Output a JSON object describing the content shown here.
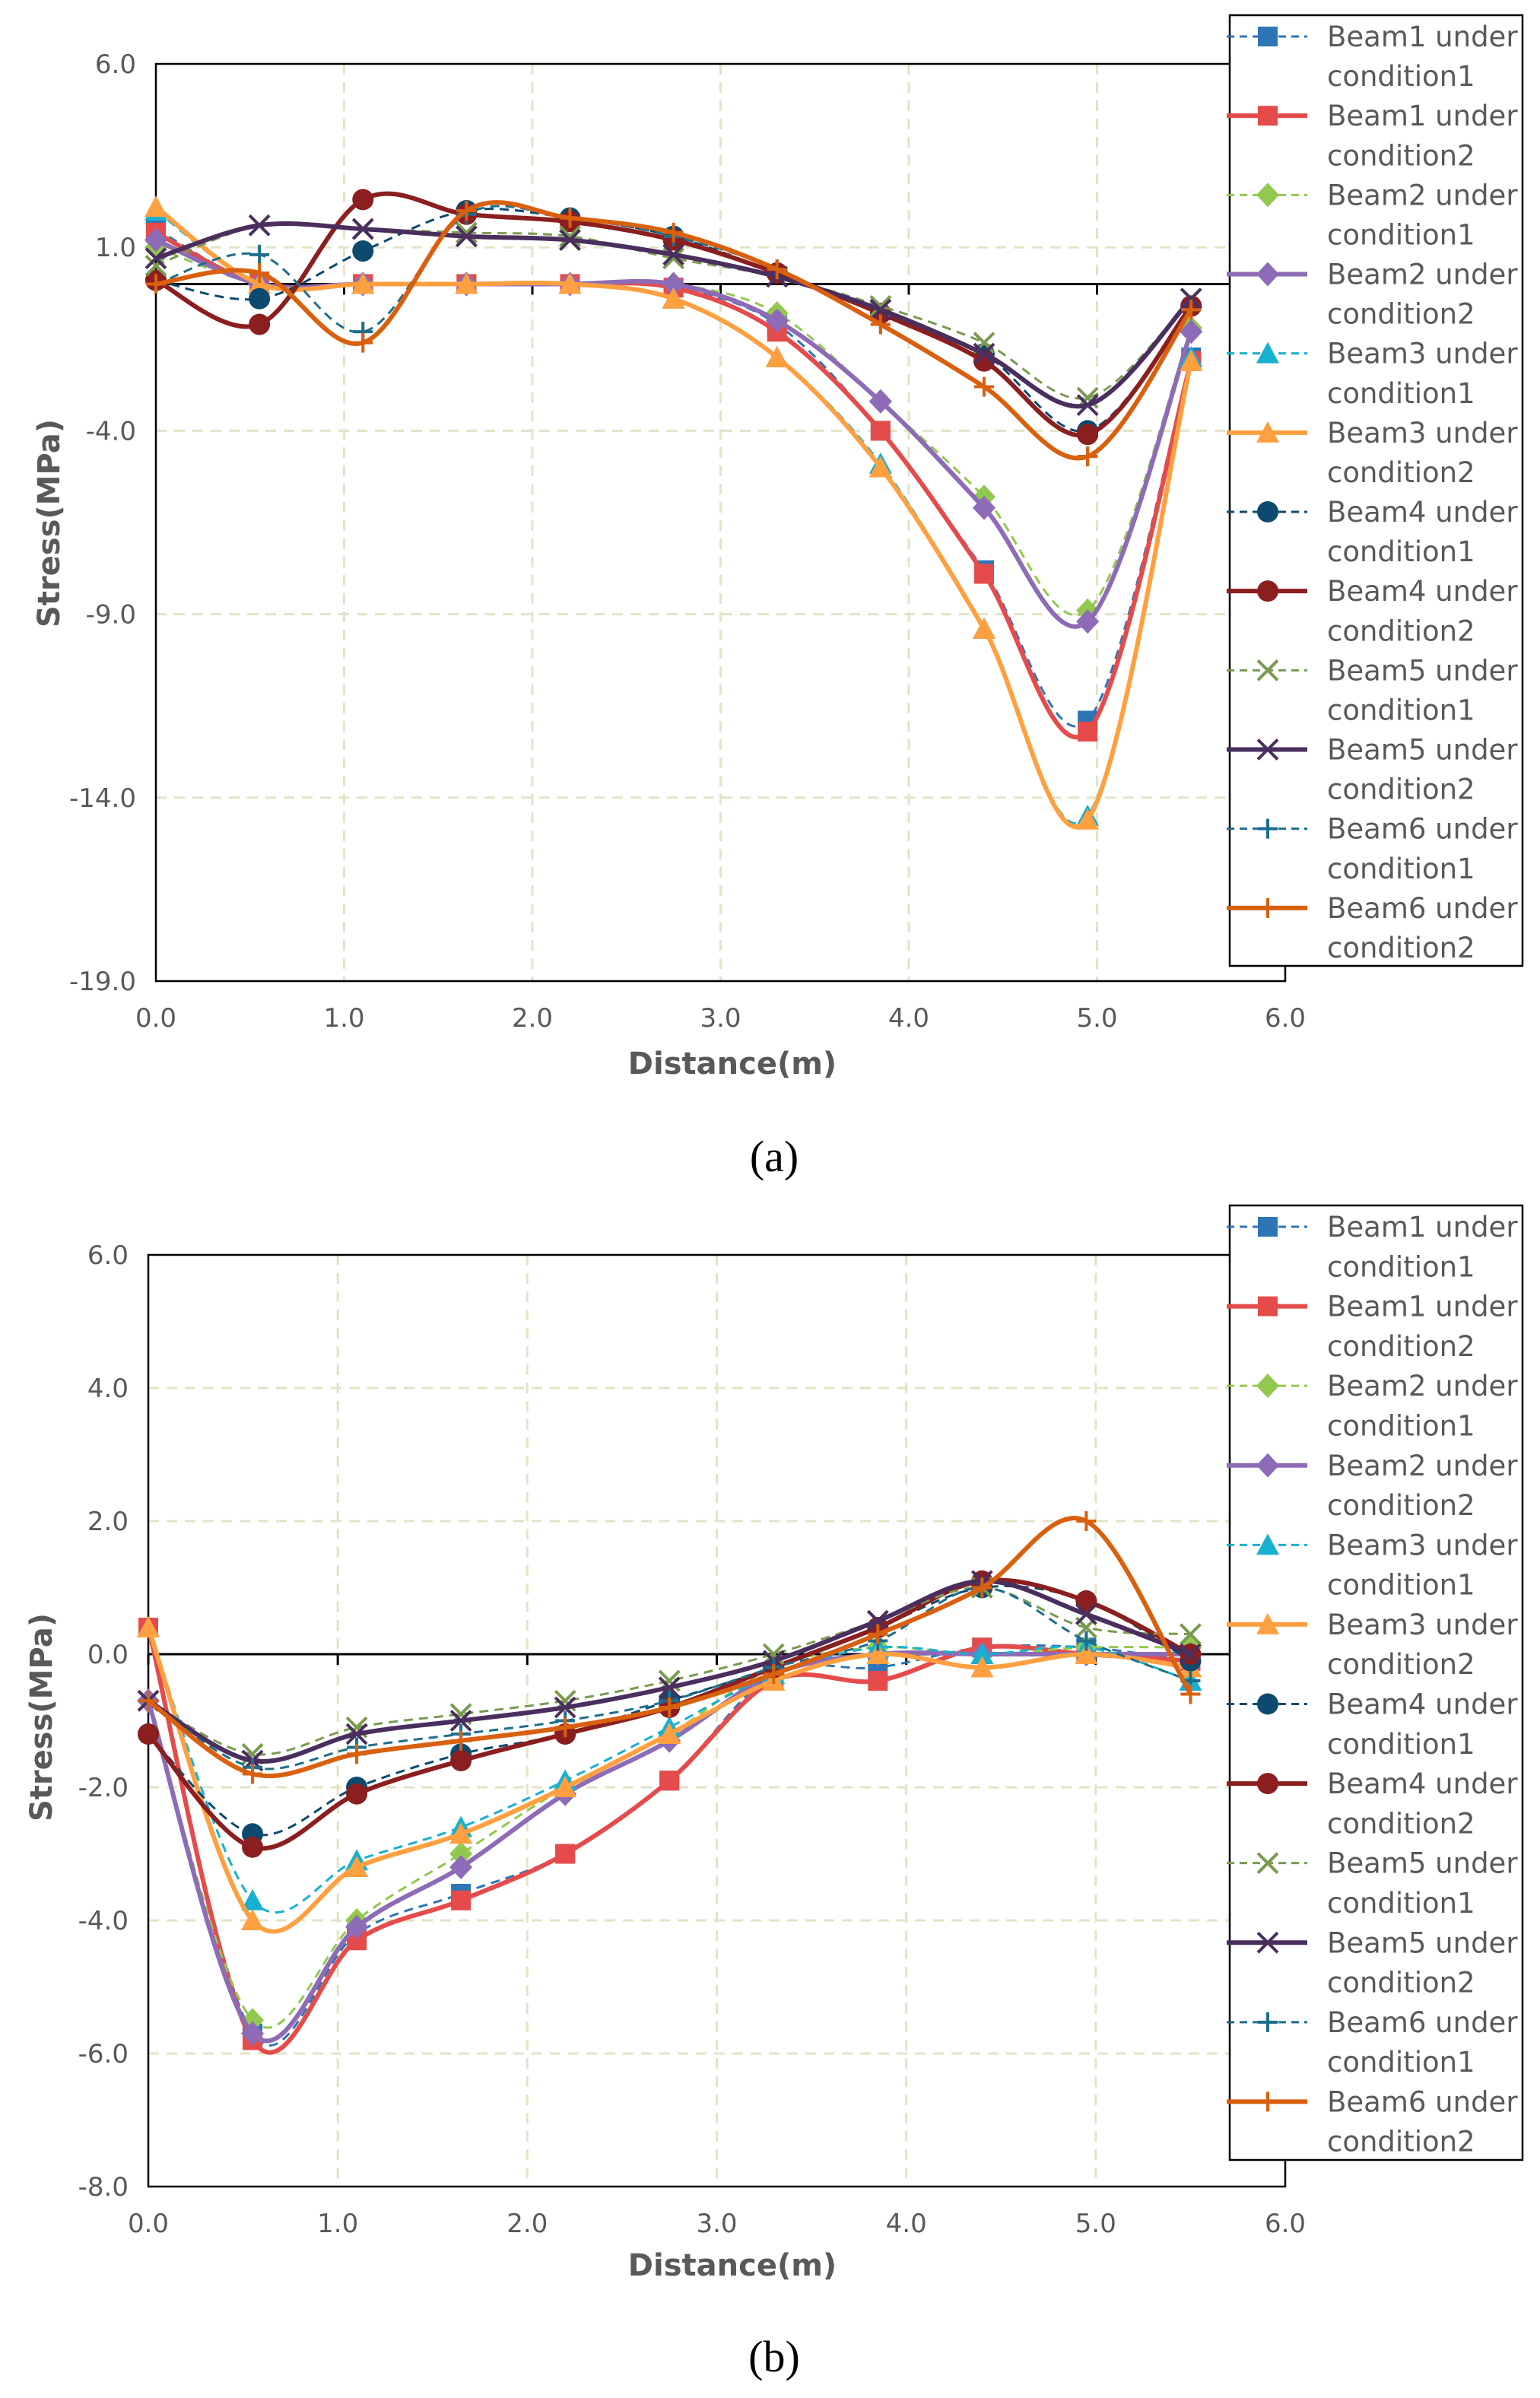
{
  "colors": {
    "b1c1": "#2E75B6",
    "b1c2": "#E54B4B",
    "b2c1": "#92C84E",
    "b2c2": "#8E6BB7",
    "b3c1": "#17B0D0",
    "b3c2": "#FFA040",
    "b4c1": "#0C4A6E",
    "b4c2": "#8B1E1E",
    "b5c1": "#7A9A50",
    "b5c2": "#4A2E5E",
    "b6c1": "#1D6E8C",
    "b6c2": "#D9600F",
    "grid": "#e3e3c7",
    "axis": "#000000"
  },
  "legend": [
    {
      "line1": "Beam1 under",
      "line2": "condition1",
      "marker": "square",
      "dashed": true,
      "color_key": "b1c1"
    },
    {
      "line1": "Beam1 under",
      "line2": "condition2",
      "marker": "square",
      "dashed": false,
      "color_key": "b1c2"
    },
    {
      "line1": "Beam2 under",
      "line2": "condition1",
      "marker": "diamond",
      "dashed": true,
      "color_key": "b2c1"
    },
    {
      "line1": "Beam2 under",
      "line2": "condition2",
      "marker": "diamond",
      "dashed": false,
      "color_key": "b2c2"
    },
    {
      "line1": "Beam3 under",
      "line2": "condition1",
      "marker": "triangle",
      "dashed": true,
      "color_key": "b3c1"
    },
    {
      "line1": "Beam3 under",
      "line2": "condition2",
      "marker": "triangle",
      "dashed": false,
      "color_key": "b3c2"
    },
    {
      "line1": "Beam4 under",
      "line2": "condition1",
      "marker": "circle",
      "dashed": true,
      "color_key": "b4c1"
    },
    {
      "line1": "Beam4 under",
      "line2": "condition2",
      "marker": "circle",
      "dashed": false,
      "color_key": "b4c2"
    },
    {
      "line1": "Beam5 under",
      "line2": "condition1",
      "marker": "x",
      "dashed": true,
      "color_key": "b5c1"
    },
    {
      "line1": "Beam5 under",
      "line2": "condition2",
      "marker": "x",
      "dashed": false,
      "color_key": "b5c2"
    },
    {
      "line1": "Beam6 under",
      "line2": "condition1",
      "marker": "plus",
      "dashed": true,
      "color_key": "b6c1"
    },
    {
      "line1": "Beam6 under",
      "line2": "condition2",
      "marker": "plus",
      "dashed": false,
      "color_key": "b6c2"
    }
  ],
  "chart_data": [
    {
      "type": "line",
      "caption": "(a)",
      "xlabel": "Distance(m)",
      "ylabel": "Stress(MPa)",
      "xlim": [
        0,
        6
      ],
      "ylim": [
        -19,
        6
      ],
      "xticks": [
        0,
        1,
        2,
        3,
        4,
        5,
        6
      ],
      "xtick_labels": [
        "0.0",
        "1.0",
        "2.0",
        "3.0",
        "4.0",
        "5.0",
        "6.0"
      ],
      "yticks": [
        6,
        1,
        -4,
        -9,
        -14,
        -19
      ],
      "ytick_labels": [
        "6.0",
        "1.0",
        "-4.0",
        "-9.0",
        "-14.0",
        "-19.0"
      ],
      "grid": true,
      "legend_position": "right",
      "x": [
        0,
        0.55,
        1.1,
        1.65,
        2.2,
        2.75,
        3.3,
        3.85,
        4.4,
        4.95,
        5.5
      ],
      "series": [
        {
          "name": "Beam1 under condition1",
          "values": [
            1.5,
            0,
            0,
            0,
            0,
            -0.1,
            -1.1,
            -4.0,
            -7.8,
            -11.9,
            -2.0
          ]
        },
        {
          "name": "Beam1 under condition2",
          "values": [
            1.4,
            0,
            0,
            0,
            0,
            -0.1,
            -1.3,
            -4.0,
            -7.9,
            -12.2,
            -2.1
          ]
        },
        {
          "name": "Beam2 under condition1",
          "values": [
            1.0,
            0,
            0,
            0,
            0,
            0,
            -0.8,
            -3.2,
            -5.8,
            -8.9,
            -1.2
          ]
        },
        {
          "name": "Beam2 under condition2",
          "values": [
            1.2,
            0,
            0,
            0,
            0,
            0,
            -1.0,
            -3.2,
            -6.1,
            -9.2,
            -1.3
          ]
        },
        {
          "name": "Beam3 under condition1",
          "values": [
            2.0,
            0,
            0,
            0,
            0,
            -0.4,
            -2.0,
            -4.9,
            -9.4,
            -14.5,
            -2.0
          ]
        },
        {
          "name": "Beam3 under condition2",
          "values": [
            2.1,
            0,
            0,
            0,
            0,
            -0.4,
            -2.0,
            -5.0,
            -9.4,
            -14.6,
            -2.1
          ]
        },
        {
          "name": "Beam4 under condition1",
          "values": [
            0.1,
            -0.4,
            0.9,
            2.0,
            1.8,
            1.3,
            0.3,
            -0.8,
            -1.9,
            -4.0,
            -0.6
          ]
        },
        {
          "name": "Beam4 under condition2",
          "values": [
            0.1,
            -1.1,
            2.3,
            1.9,
            1.7,
            1.2,
            0.3,
            -0.8,
            -2.1,
            -4.1,
            -0.6
          ]
        },
        {
          "name": "Beam5 under condition1",
          "values": [
            0.5,
            1.6,
            1.5,
            1.4,
            1.3,
            0.7,
            0.2,
            -0.6,
            -1.6,
            -3.1,
            -0.4
          ]
        },
        {
          "name": "Beam5 under condition2",
          "values": [
            0.7,
            1.6,
            1.5,
            1.3,
            1.2,
            0.8,
            0.2,
            -0.7,
            -1.9,
            -3.3,
            -0.4
          ]
        },
        {
          "name": "Beam6 under condition1",
          "values": [
            0.0,
            0.8,
            -1.3,
            1.9,
            1.8,
            1.3,
            0.4,
            -1.1,
            -2.8,
            -4.7,
            -0.7
          ]
        },
        {
          "name": "Beam6 under condition2",
          "values": [
            0.0,
            0.3,
            -1.6,
            2.0,
            1.8,
            1.4,
            0.4,
            -1.1,
            -2.8,
            -4.7,
            -0.7
          ]
        }
      ]
    },
    {
      "type": "line",
      "caption": "(b)",
      "xlabel": "Distance(m)",
      "ylabel": "Stress(MPa)",
      "xlim": [
        0,
        6
      ],
      "ylim": [
        -8,
        6
      ],
      "xticks": [
        0,
        1,
        2,
        3,
        4,
        5,
        6
      ],
      "xtick_labels": [
        "0.0",
        "1.0",
        "2.0",
        "3.0",
        "4.0",
        "5.0",
        "6.0"
      ],
      "yticks": [
        6,
        4,
        2,
        0,
        -2,
        -4,
        -6,
        -8
      ],
      "ytick_labels": [
        "6.0",
        "4.0",
        "2.0",
        "0.0",
        "-2.0",
        "-4.0",
        "-6.0",
        "-8.0"
      ],
      "grid": true,
      "legend_position": "right",
      "x": [
        0,
        0.55,
        1.1,
        1.65,
        2.2,
        2.75,
        3.3,
        3.85,
        4.4,
        4.95,
        5.5
      ],
      "series": [
        {
          "name": "Beam1 under condition1",
          "values": [
            0.4,
            -5.7,
            -4.2,
            -3.6,
            -3.0,
            -1.9,
            -0.3,
            -0.2,
            0.1,
            0.1,
            -0.1
          ]
        },
        {
          "name": "Beam1 under condition2",
          "values": [
            0.4,
            -5.8,
            -4.3,
            -3.7,
            -3.0,
            -1.9,
            -0.4,
            -0.4,
            0.1,
            0.0,
            -0.1
          ]
        },
        {
          "name": "Beam2 under condition1",
          "values": [
            -0.7,
            -5.5,
            -4.0,
            -3.0,
            -2.0,
            -1.2,
            -0.2,
            0.1,
            0.0,
            0.1,
            0.1
          ]
        },
        {
          "name": "Beam2 under condition2",
          "values": [
            -0.7,
            -5.7,
            -4.1,
            -3.2,
            -2.1,
            -1.3,
            -0.3,
            0.0,
            0.0,
            0.0,
            0.0
          ]
        },
        {
          "name": "Beam3 under condition1",
          "values": [
            0.4,
            -3.7,
            -3.1,
            -2.6,
            -1.9,
            -1.1,
            -0.3,
            0.1,
            0.0,
            0.1,
            -0.4
          ]
        },
        {
          "name": "Beam3 under condition2",
          "values": [
            0.4,
            -4.0,
            -3.2,
            -2.7,
            -2.0,
            -1.2,
            -0.4,
            0.0,
            -0.2,
            0.0,
            -0.2
          ]
        },
        {
          "name": "Beam4 under condition1",
          "values": [
            -1.2,
            -2.7,
            -2.0,
            -1.5,
            -1.2,
            -0.7,
            -0.2,
            0.4,
            1.0,
            0.8,
            -0.1
          ]
        },
        {
          "name": "Beam4 under condition2",
          "values": [
            -1.2,
            -2.9,
            -2.1,
            -1.6,
            -1.2,
            -0.8,
            -0.2,
            0.4,
            1.1,
            0.8,
            0.0
          ]
        },
        {
          "name": "Beam5 under condition1",
          "values": [
            -0.7,
            -1.5,
            -1.1,
            -0.9,
            -0.7,
            -0.4,
            0.0,
            0.5,
            1.0,
            0.4,
            0.3
          ]
        },
        {
          "name": "Beam5 under condition2",
          "values": [
            -0.7,
            -1.6,
            -1.2,
            -1.0,
            -0.8,
            -0.5,
            -0.1,
            0.5,
            1.1,
            0.6,
            0.0
          ]
        },
        {
          "name": "Beam6 under condition1",
          "values": [
            -0.7,
            -1.7,
            -1.4,
            -1.2,
            -1.0,
            -0.7,
            -0.2,
            0.2,
            1.0,
            0.2,
            -0.4
          ]
        },
        {
          "name": "Beam6 under condition2",
          "values": [
            -0.7,
            -1.8,
            -1.5,
            -1.3,
            -1.1,
            -0.8,
            -0.3,
            0.3,
            1.0,
            2.0,
            -0.6
          ]
        }
      ]
    }
  ]
}
